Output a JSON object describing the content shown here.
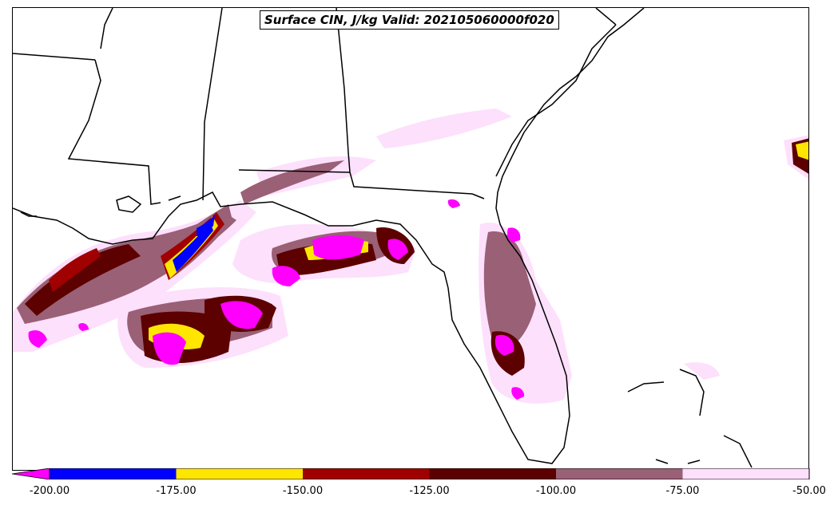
{
  "title": "Surface CIN, J/kg Valid: 202105060000f020",
  "colorbar": {
    "ticks": [
      "-200.00",
      "-175.00",
      "-150.00",
      "-125.00",
      "-100.00",
      "-75.00",
      "-50.00"
    ],
    "extend": "min",
    "extend_color": "#ff00ff",
    "bins": [
      {
        "range": [
          -200,
          -175
        ],
        "color": "#0000ff"
      },
      {
        "range": [
          -175,
          -150
        ],
        "color": "#ffe600"
      },
      {
        "range": [
          -150,
          -125
        ],
        "color": "#a00000"
      },
      {
        "range": [
          -125,
          -100
        ],
        "color": "#5c0000"
      },
      {
        "range": [
          -100,
          -75
        ],
        "color": "#9a6076"
      },
      {
        "range": [
          -75,
          -50
        ],
        "color": "#fde0fc"
      }
    ]
  },
  "map": {
    "region": "Southeastern United States and Gulf of Mexico",
    "land_color": "#ffffff",
    "water_color": "#ffffff",
    "border_color": "#000000"
  }
}
